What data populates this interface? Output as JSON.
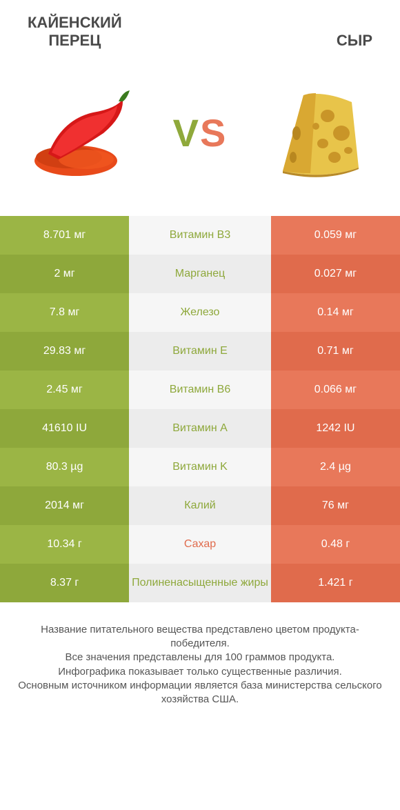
{
  "colors": {
    "left_a": "#9bb545",
    "left_b": "#8ea83b",
    "right_a": "#e8785a",
    "right_b": "#e06b4c",
    "mid_a": "#f6f6f6",
    "mid_b": "#ececec",
    "mid_text_green": "#8ea83b",
    "mid_text_orange": "#e06b4c",
    "title_color": "#4a4a4a",
    "footer_color": "#555555"
  },
  "header": {
    "left_title": "КАЙЕНСКИЙ\nПЕРЕЦ",
    "right_title": "СЫР",
    "vs_v": "V",
    "vs_s": "S"
  },
  "rows": [
    {
      "left": "8.701 мг",
      "label": "Витамин B3",
      "right": "0.059 мг",
      "winner": "left"
    },
    {
      "left": "2 мг",
      "label": "Марганец",
      "right": "0.027 мг",
      "winner": "left"
    },
    {
      "left": "7.8 мг",
      "label": "Железо",
      "right": "0.14 мг",
      "winner": "left"
    },
    {
      "left": "29.83 мг",
      "label": "Витамин E",
      "right": "0.71 мг",
      "winner": "left"
    },
    {
      "left": "2.45 мг",
      "label": "Витамин B6",
      "right": "0.066 мг",
      "winner": "left"
    },
    {
      "left": "41610 IU",
      "label": "Витамин A",
      "right": "1242 IU",
      "winner": "left"
    },
    {
      "left": "80.3 µg",
      "label": "Витамин K",
      "right": "2.4 µg",
      "winner": "left"
    },
    {
      "left": "2014 мг",
      "label": "Калий",
      "right": "76 мг",
      "winner": "left"
    },
    {
      "left": "10.34 г",
      "label": "Сахар",
      "right": "0.48 г",
      "winner": "right"
    },
    {
      "left": "8.37 г",
      "label": "Полиненасыщенные жиры",
      "right": "1.421 г",
      "winner": "left"
    }
  ],
  "footer": {
    "line1": "Название питательного вещества представлено цветом продукта-победителя.",
    "line2": "Все значения представлены для 100 граммов продукта.",
    "line3": "Инфографика показывает только существенные различия.",
    "line4": "Основным источником информации является база министерства сельского хозяйства США."
  }
}
